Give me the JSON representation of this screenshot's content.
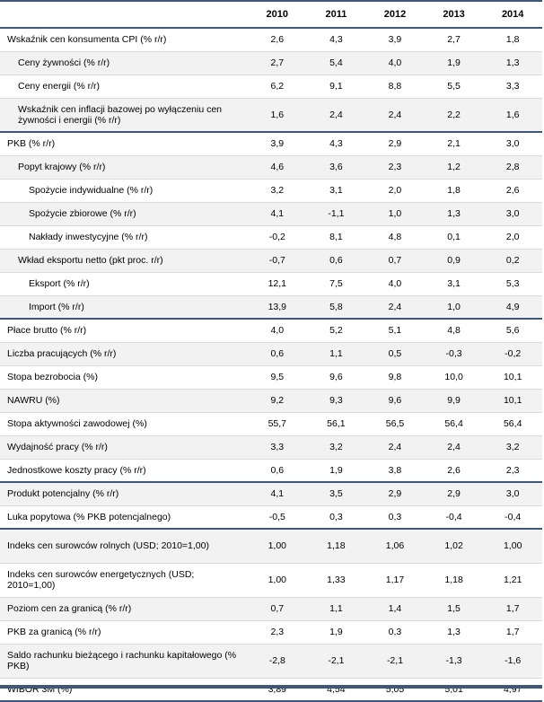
{
  "header": {
    "label": "",
    "years": [
      "2010",
      "2011",
      "2012",
      "2013",
      "2014"
    ]
  },
  "rows": [
    {
      "label": "Wskaźnik cen konsumenta CPI (% r/r)",
      "level": 0,
      "values": [
        "2,6",
        "4,3",
        "3,9",
        "2,7",
        "1,8"
      ]
    },
    {
      "label": "Ceny żywności (% r/r)",
      "level": 1,
      "values": [
        "2,7",
        "5,4",
        "4,0",
        "1,9",
        "1,3"
      ]
    },
    {
      "label": "Ceny energii (% r/r)",
      "level": 1,
      "values": [
        "6,2",
        "9,1",
        "8,8",
        "5,5",
        "3,3"
      ]
    },
    {
      "label": "Wskaźnik cen inflacji bazowej po wyłączeniu cen żywności i energii (% r/r)",
      "level": 1,
      "tall": true,
      "values": [
        "1,6",
        "2,4",
        "2,4",
        "2,2",
        "1,6"
      ]
    },
    {
      "label": "PKB (% r/r)",
      "level": 0,
      "group_start": true,
      "values": [
        "3,9",
        "4,3",
        "2,9",
        "2,1",
        "3,0"
      ]
    },
    {
      "label": "Popyt krajowy (% r/r)",
      "level": 1,
      "values": [
        "4,6",
        "3,6",
        "2,3",
        "1,2",
        "2,8"
      ]
    },
    {
      "label": "Spożycie indywidualne (% r/r)",
      "level": 2,
      "values": [
        "3,2",
        "3,1",
        "2,0",
        "1,8",
        "2,6"
      ]
    },
    {
      "label": "Spożycie zbiorowe (% r/r)",
      "level": 2,
      "values": [
        "4,1",
        "-1,1",
        "1,0",
        "1,3",
        "3,0"
      ]
    },
    {
      "label": "Nakłady inwestycyjne (% r/r)",
      "level": 2,
      "values": [
        "-0,2",
        "8,1",
        "4,8",
        "0,1",
        "2,0"
      ]
    },
    {
      "label": "Wkład eksportu netto (pkt proc. r/r)",
      "level": 1,
      "values": [
        "-0,7",
        "0,6",
        "0,7",
        "0,9",
        "0,2"
      ]
    },
    {
      "label": "Eksport (% r/r)",
      "level": 2,
      "values": [
        "12,1",
        "7,5",
        "4,0",
        "3,1",
        "5,3"
      ]
    },
    {
      "label": "Import (% r/r)",
      "level": 2,
      "values": [
        "13,9",
        "5,8",
        "2,4",
        "1,0",
        "4,9"
      ]
    },
    {
      "label": "Płace brutto (% r/r)",
      "level": 0,
      "group_start": true,
      "values": [
        "4,0",
        "5,2",
        "5,1",
        "4,8",
        "5,6"
      ]
    },
    {
      "label": "Liczba pracujących (% r/r)",
      "level": 0,
      "values": [
        "0,6",
        "1,1",
        "0,5",
        "-0,3",
        "-0,2"
      ]
    },
    {
      "label": "Stopa bezrobocia (%)",
      "level": 0,
      "values": [
        "9,5",
        "9,6",
        "9,8",
        "10,0",
        "10,1"
      ]
    },
    {
      "label": "NAWRU (%)",
      "level": 0,
      "values": [
        "9,2",
        "9,3",
        "9,6",
        "9,9",
        "10,1"
      ]
    },
    {
      "label": "Stopa aktywności zawodowej (%)",
      "level": 0,
      "values": [
        "55,7",
        "56,1",
        "56,5",
        "56,4",
        "56,4"
      ]
    },
    {
      "label": "Wydajność pracy (% r/r)",
      "level": 0,
      "values": [
        "3,3",
        "3,2",
        "2,4",
        "2,4",
        "3,2"
      ]
    },
    {
      "label": "Jednostkowe koszty pracy (% r/r)",
      "level": 0,
      "values": [
        "0,6",
        "1,9",
        "3,8",
        "2,6",
        "2,3"
      ]
    },
    {
      "label": "Produkt potencjalny (% r/r)",
      "level": 0,
      "group_start": true,
      "values": [
        "4,1",
        "3,5",
        "2,9",
        "2,9",
        "3,0"
      ]
    },
    {
      "label": "Luka popytowa (% PKB potencjalnego)",
      "level": 0,
      "values": [
        "-0,5",
        "0,3",
        "0,3",
        "-0,4",
        "-0,4"
      ]
    },
    {
      "label": "Indeks cen surowców rolnych (USD; 2010=1,00)",
      "level": 0,
      "group_start": true,
      "tall": true,
      "values": [
        "1,00",
        "1,18",
        "1,06",
        "1,02",
        "1,00"
      ]
    },
    {
      "label": "Indeks cen surowców energetycznych (USD; 2010=1,00)",
      "level": 0,
      "tall": true,
      "values": [
        "1,00",
        "1,33",
        "1,17",
        "1,18",
        "1,21"
      ]
    },
    {
      "label": "Poziom cen za granicą (% r/r)",
      "level": 0,
      "values": [
        "0,7",
        "1,1",
        "1,4",
        "1,5",
        "1,7"
      ]
    },
    {
      "label": "PKB za granicą (% r/r)",
      "level": 0,
      "values": [
        "2,3",
        "1,9",
        "0,3",
        "1,3",
        "1,7"
      ]
    },
    {
      "label": "Saldo rachunku bieżącego i rachunku kapitałowego (% PKB)",
      "level": 0,
      "tall": true,
      "values": [
        "-2,8",
        "-2,1",
        "-2,1",
        "-1,3",
        "-1,6"
      ]
    },
    {
      "label": "WIBOR 3M (%)",
      "level": 0,
      "values": [
        "3,89",
        "4,54",
        "5,05",
        "5,01",
        "4,97"
      ]
    }
  ]
}
